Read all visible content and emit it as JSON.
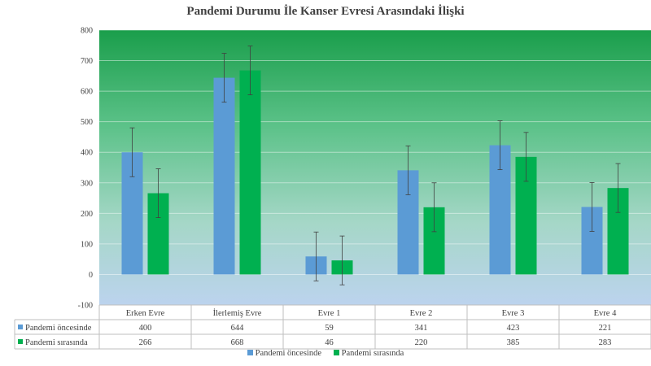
{
  "chart_data": {
    "type": "bar",
    "title": "Pandemi Durumu İle Kanser Evresi Arasındaki İlişki",
    "categories": [
      "Erken Evre",
      "İlerlemiş Evre",
      "Evre 1",
      "Evre 2",
      "Evre 3",
      "Evre 4"
    ],
    "series": [
      {
        "name": "Pandemi öncesinde",
        "values": [
          400,
          644,
          59,
          341,
          423,
          221
        ],
        "color": "#5b9bd5"
      },
      {
        "name": "Pandemi sırasında",
        "values": [
          266,
          668,
          46,
          220,
          385,
          283
        ],
        "color": "#00b050"
      }
    ],
    "error_bar": 80,
    "ylim": [
      -100,
      800
    ],
    "yticks": [
      -100,
      0,
      100,
      200,
      300,
      400,
      500,
      600,
      700,
      800
    ],
    "xlabel": "",
    "ylabel": "",
    "grid": true,
    "data_table": true,
    "legend_position": "bottom",
    "background": {
      "top_color": "#1a9e4b",
      "bottom_color": "#bcd3ee"
    }
  }
}
